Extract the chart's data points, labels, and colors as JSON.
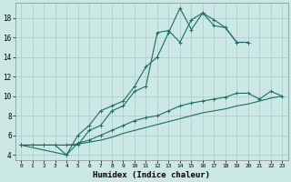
{
  "xlabel": "Humidex (Indice chaleur)",
  "bg_color": "#cce8e4",
  "grid_color": "#b0d0cc",
  "line_color": "#1a6b6b",
  "xlim": [
    -0.5,
    23.5
  ],
  "ylim": [
    3.5,
    19.5
  ],
  "xticks": [
    0,
    1,
    2,
    3,
    4,
    5,
    6,
    7,
    8,
    9,
    10,
    11,
    12,
    13,
    14,
    15,
    16,
    17,
    18,
    19,
    20,
    21,
    22,
    23
  ],
  "yticks": [
    4,
    6,
    8,
    10,
    12,
    14,
    16,
    18
  ],
  "series1_x": [
    0,
    1,
    2,
    3,
    4,
    5,
    6,
    7,
    8,
    9,
    10,
    11,
    12,
    13,
    14,
    15,
    16,
    17,
    18,
    19,
    20
  ],
  "series1_y": [
    5.0,
    5.0,
    5.0,
    5.0,
    4.0,
    6.0,
    7.0,
    8.5,
    9.0,
    9.5,
    11.0,
    13.0,
    14.0,
    16.5,
    19.0,
    16.8,
    18.5,
    17.8,
    17.0,
    15.5,
    15.5
  ],
  "series2_x": [
    0,
    4,
    5,
    6,
    7,
    8,
    9,
    10,
    11,
    12,
    13,
    14,
    15,
    16,
    17,
    18,
    19,
    20
  ],
  "series2_y": [
    5.0,
    5.0,
    5.0,
    6.5,
    7.0,
    8.5,
    9.0,
    10.5,
    11.0,
    16.5,
    16.7,
    15.5,
    17.8,
    18.5,
    17.2,
    17.0,
    15.5,
    15.5
  ],
  "series3_x": [
    0,
    4,
    5,
    6,
    7,
    8,
    9,
    10,
    11,
    12,
    13,
    14,
    15,
    16,
    17,
    18,
    19,
    20,
    21,
    22,
    23
  ],
  "series3_y": [
    5.0,
    4.0,
    5.2,
    5.5,
    6.0,
    6.5,
    7.0,
    7.5,
    7.8,
    8.0,
    8.5,
    9.0,
    9.3,
    9.5,
    9.7,
    9.9,
    10.3,
    10.3,
    9.7,
    10.5,
    10.0
  ],
  "series4_x": [
    0,
    4,
    5,
    6,
    7,
    8,
    9,
    10,
    11,
    12,
    13,
    14,
    15,
    16,
    17,
    18,
    19,
    20,
    21,
    22,
    23
  ],
  "series4_y": [
    5.0,
    5.0,
    5.1,
    5.3,
    5.5,
    5.8,
    6.2,
    6.5,
    6.8,
    7.1,
    7.4,
    7.7,
    8.0,
    8.3,
    8.5,
    8.7,
    9.0,
    9.2,
    9.5,
    9.8,
    10.0
  ]
}
